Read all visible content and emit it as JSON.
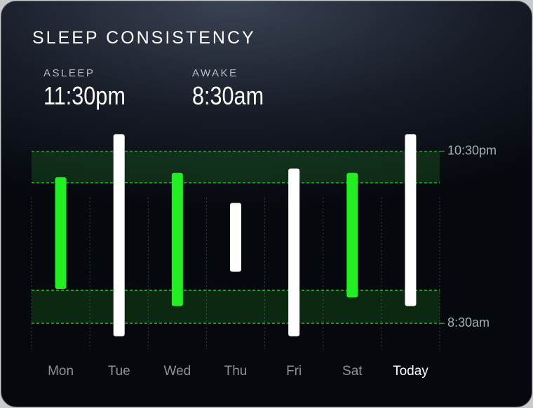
{
  "header": {
    "title": "SLEEP CONSISTENCY",
    "stats": [
      {
        "label": "ASLEEP",
        "value": "11:30pm"
      },
      {
        "label": "AWAKE",
        "value": "8:30am"
      }
    ]
  },
  "chart_data": {
    "type": "range",
    "categories": [
      "Mon",
      "Tue",
      "Wed",
      "Thu",
      "Fri",
      "Sat",
      "Today"
    ],
    "highlight_category": 6,
    "starts": [
      24.0,
      21.5,
      23.75,
      25.5,
      23.5,
      23.75,
      21.5
    ],
    "ends": [
      30.5,
      33.25,
      31.5,
      29.5,
      33.25,
      31.0,
      31.5
    ],
    "colors": [
      "#22ee22",
      "#ffffff",
      "#22ee22",
      "#ffffff",
      "#ffffff",
      "#22ee22",
      "#ffffff"
    ],
    "bands": [
      [
        22.5,
        24.33
      ],
      [
        30.58,
        32.5
      ]
    ],
    "band_color": "#2bd62b",
    "ylim": [
      21.28,
      34.0
    ],
    "yticks": [
      {
        "value": 22.5,
        "label": "10:30pm"
      },
      {
        "value": 32.5,
        "label": "8:30am"
      }
    ],
    "grid": true
  }
}
